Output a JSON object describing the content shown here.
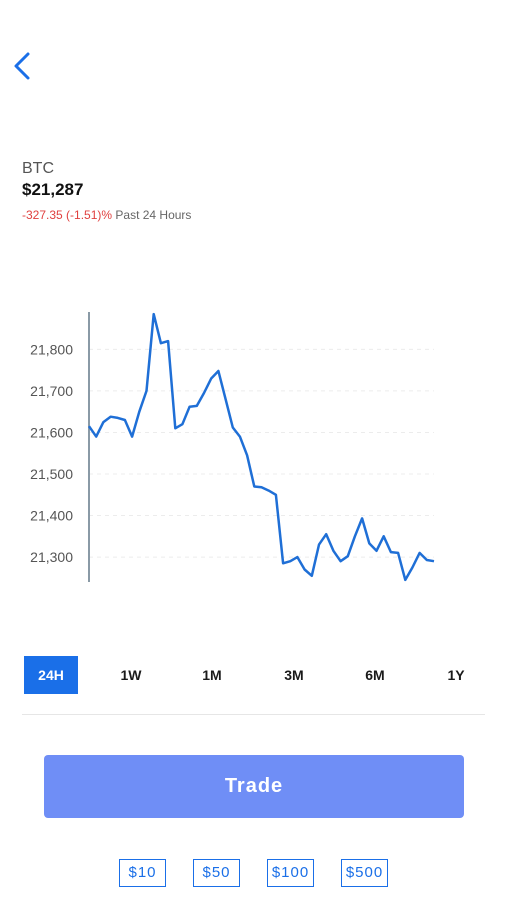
{
  "header": {
    "back_icon": "chevron-left-icon"
  },
  "asset": {
    "ticker": "BTC",
    "price": "$21,287",
    "change": "-327.35 (-1.51)%",
    "period": "Past 24 Hours"
  },
  "colors": {
    "accent": "#1a6fe8",
    "negative": "#e0403f",
    "trade_button": "#6f8ef6",
    "line": "#1f6fd6"
  },
  "chart_data": {
    "type": "line",
    "ylim": [
      21240,
      21890
    ],
    "yticks": [
      21300,
      21400,
      21500,
      21600,
      21700,
      21800
    ],
    "ytick_labels": [
      "21,300",
      "21,400",
      "21,500",
      "21,600",
      "21,700",
      "21,800"
    ],
    "grid": true,
    "series": [
      {
        "values": [
          21615,
          21590,
          21625,
          21638,
          21635,
          21630,
          21590,
          21650,
          21700,
          21885,
          21815,
          21820,
          21610,
          21620,
          21662,
          21664,
          21695,
          21730,
          21748,
          21680,
          21612,
          21590,
          21545,
          21470,
          21468,
          21460,
          21450,
          21285,
          21290,
          21300,
          21270,
          21255,
          21330,
          21355,
          21315,
          21290,
          21302,
          21350,
          21393,
          21333,
          21315,
          21350,
          21312,
          21310,
          21245,
          21275,
          21310,
          21293,
          21290
        ]
      }
    ]
  },
  "ranges": [
    "24H",
    "1W",
    "1M",
    "3M",
    "6M",
    "1Y"
  ],
  "active_range": "24H",
  "actions": {
    "trade_label": "Trade",
    "amounts": [
      "$10",
      "$50",
      "$100",
      "$500"
    ]
  }
}
